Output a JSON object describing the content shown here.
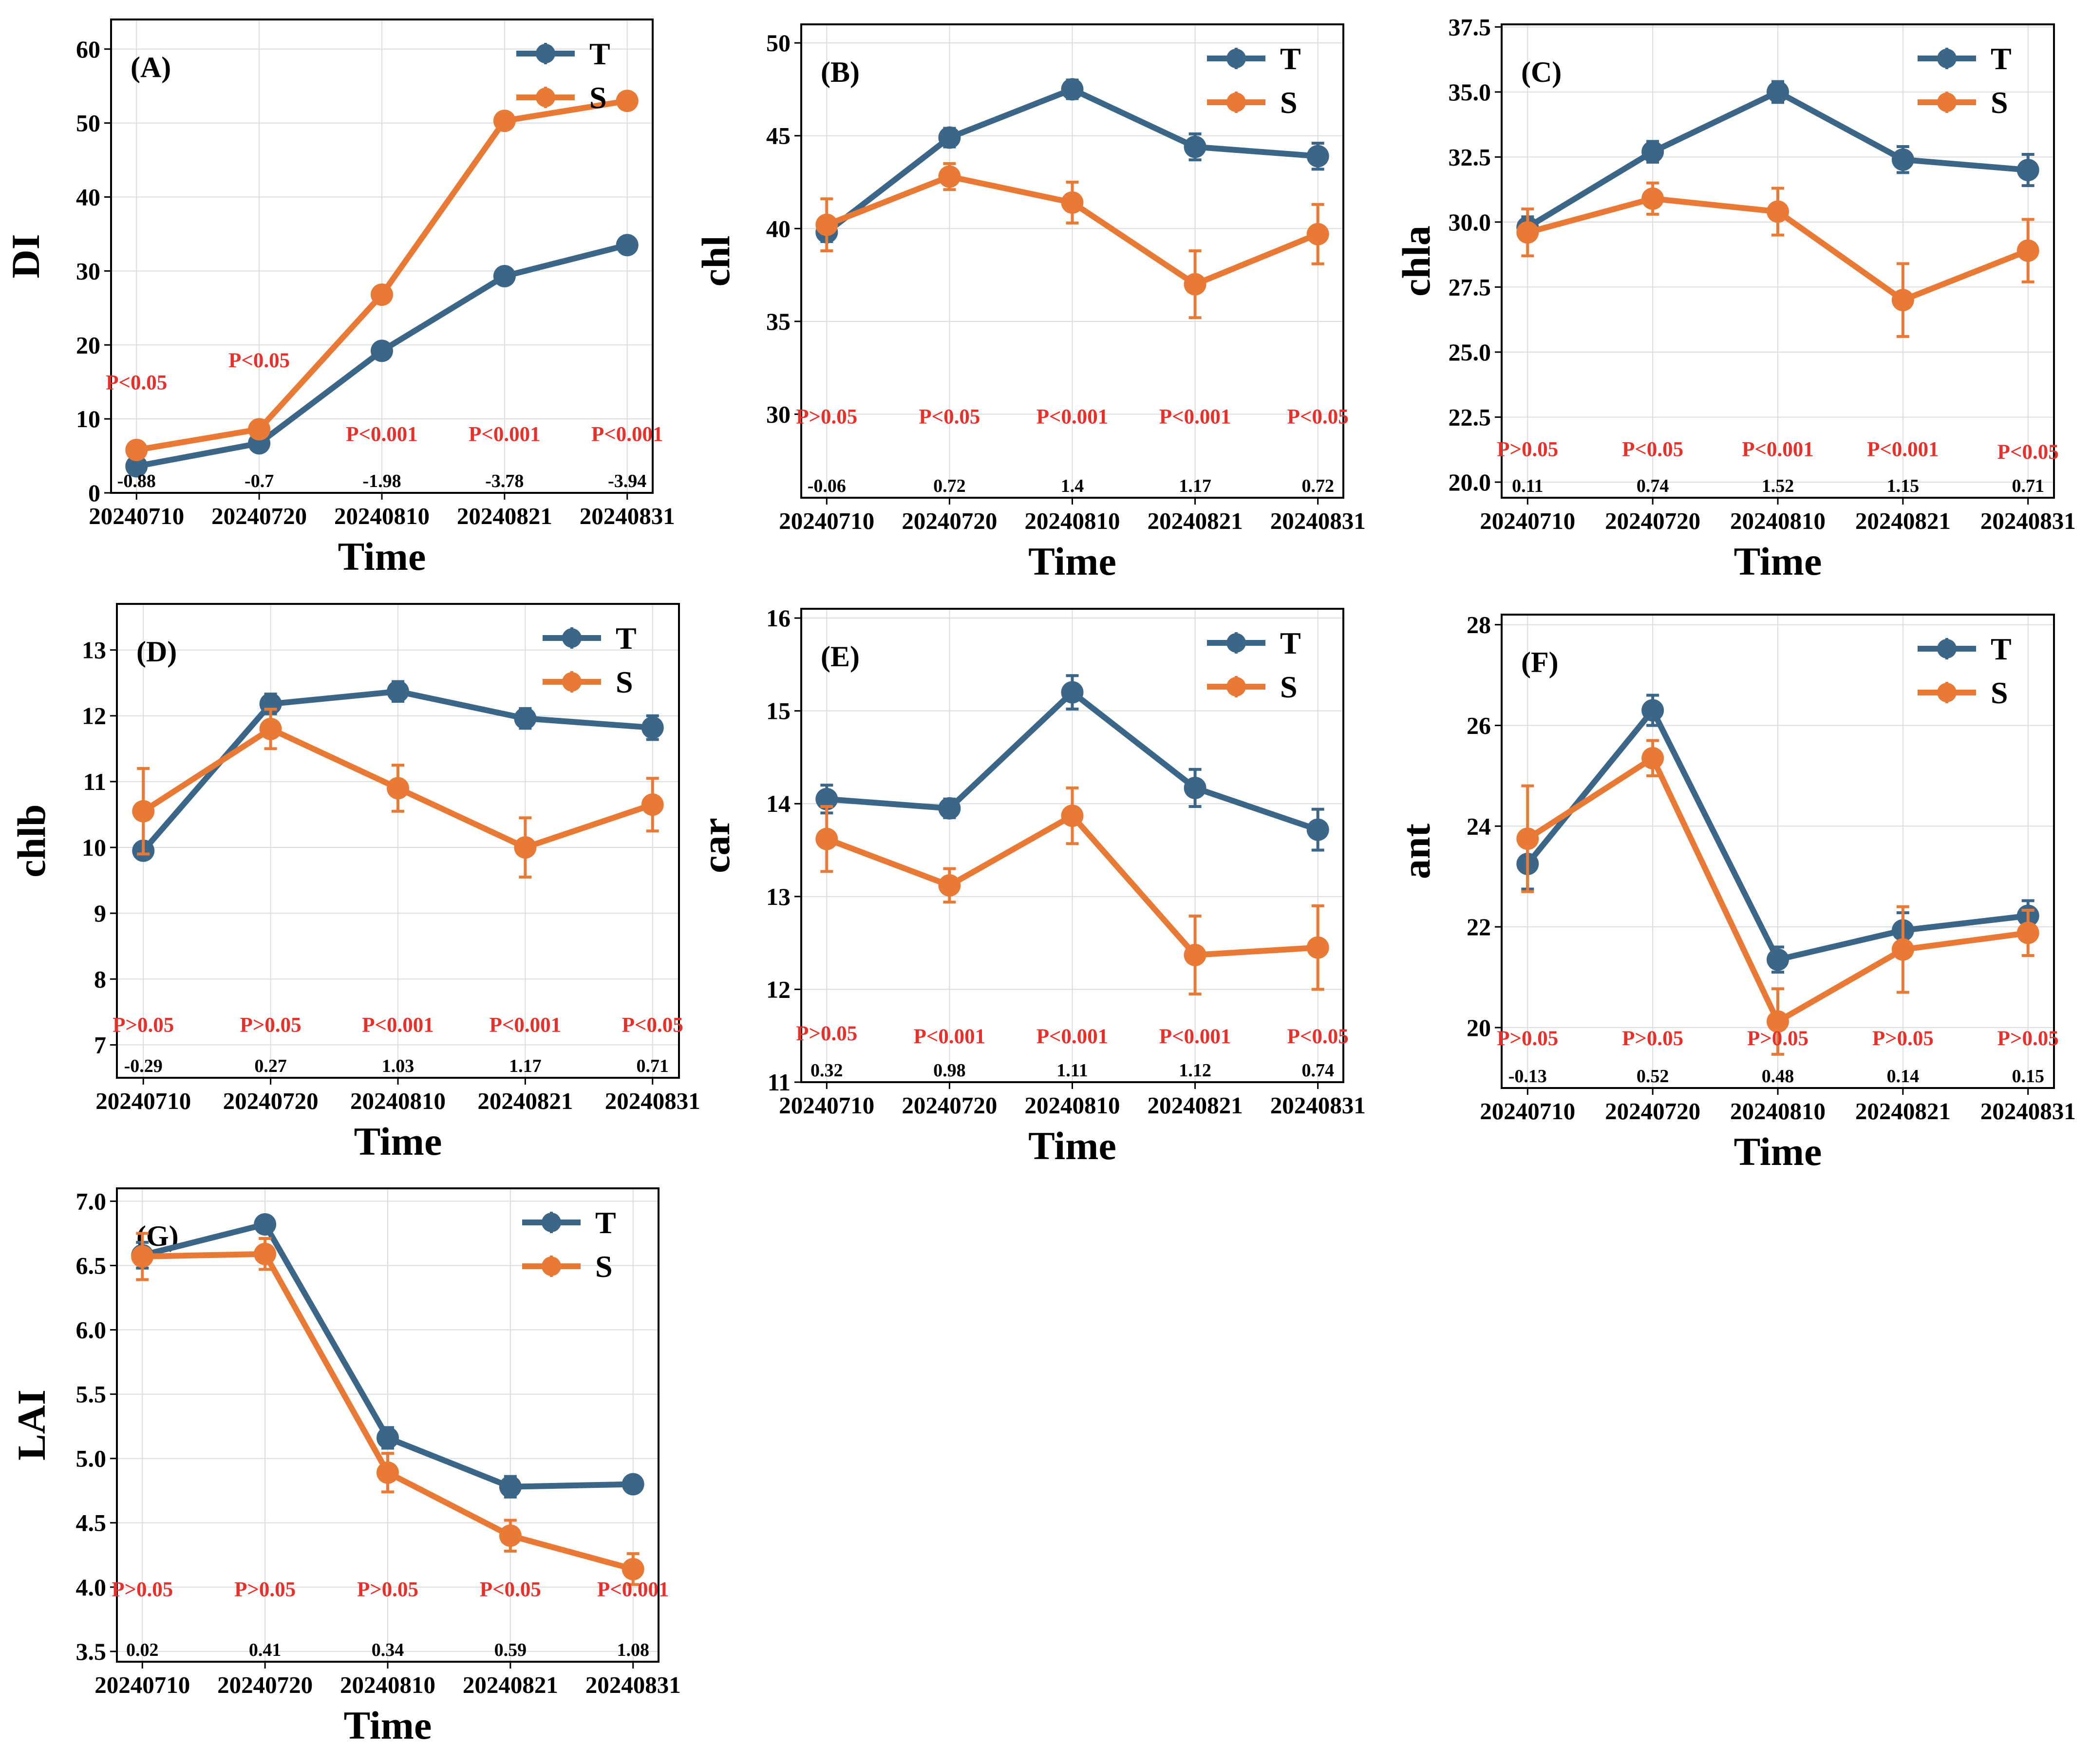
{
  "legend": {
    "t_label": "T",
    "s_label": "S"
  },
  "colors": {
    "T": "#3b6687",
    "S": "#e97a35",
    "sig": "#e8302a",
    "grid": "#dcdcdc",
    "axis": "#000000"
  },
  "chart_data": [
    {
      "id": "A",
      "type": "line",
      "panel_label": "(A)",
      "xlabel": "Time",
      "ylabel": "DI",
      "categories": [
        "20240710",
        "20240720",
        "20240810",
        "20240821",
        "20240831"
      ],
      "ylim": [
        0,
        64
      ],
      "yticks": [
        0,
        10,
        20,
        30,
        40,
        50,
        60
      ],
      "ytick_labels": [
        "0",
        "10",
        "20",
        "30",
        "40",
        "50",
        "60"
      ],
      "series": [
        {
          "name": "T",
          "values": [
            3.6,
            6.7,
            19.2,
            29.3,
            33.5
          ],
          "err": [
            0.4,
            0.4,
            0.5,
            0.5,
            0.5
          ]
        },
        {
          "name": "S",
          "values": [
            5.8,
            8.6,
            26.8,
            50.3,
            53.0
          ],
          "err": [
            0.4,
            0.4,
            0.5,
            0.5,
            0.5
          ]
        }
      ],
      "p_values": [
        "P<0.05",
        "P<0.05",
        "P<0.001",
        "P<0.001",
        "P<0.001"
      ],
      "p_levels": [
        14,
        17,
        7,
        7,
        7
      ],
      "effect_sizes": [
        "-0.88",
        "-0.7",
        "-1.98",
        "-3.78",
        "-3.94"
      ]
    },
    {
      "id": "B",
      "type": "line",
      "panel_label": "(B)",
      "xlabel": "Time",
      "ylabel": "chl",
      "categories": [
        "20240710",
        "20240720",
        "20240810",
        "20240821",
        "20240831"
      ],
      "ylim": [
        25.5,
        51
      ],
      "yticks": [
        30,
        35,
        40,
        45,
        50
      ],
      "ytick_labels": [
        "30",
        "35",
        "40",
        "45",
        "50"
      ],
      "series": [
        {
          "name": "T",
          "values": [
            39.8,
            44.9,
            47.5,
            44.4,
            43.9
          ],
          "err": [
            0.5,
            0.5,
            0.5,
            0.7,
            0.7
          ]
        },
        {
          "name": "S",
          "values": [
            40.2,
            42.8,
            41.4,
            37.0,
            39.7
          ],
          "err": [
            1.4,
            0.7,
            1.1,
            1.8,
            1.6
          ]
        }
      ],
      "p_values": [
        "P>0.05",
        "P<0.05",
        "P<0.001",
        "P<0.001",
        "P<0.05"
      ],
      "p_levels": [
        29.5,
        29.5,
        29.5,
        29.5,
        29.5
      ],
      "effect_sizes": [
        "-0.06",
        "0.72",
        "1.4",
        "1.17",
        "0.72"
      ]
    },
    {
      "id": "C",
      "type": "line",
      "panel_label": "(C)",
      "xlabel": "Time",
      "ylabel": "chla",
      "categories": [
        "20240710",
        "20240720",
        "20240810",
        "20240821",
        "20240831"
      ],
      "ylim": [
        19.4,
        37.6
      ],
      "yticks": [
        20.0,
        22.5,
        25.0,
        27.5,
        30.0,
        32.5,
        35.0,
        37.5
      ],
      "ytick_labels": [
        "20.0",
        "22.5",
        "25.0",
        "27.5",
        "30.0",
        "32.5",
        "35.0",
        "37.5"
      ],
      "series": [
        {
          "name": "T",
          "values": [
            29.8,
            32.7,
            35.0,
            32.4,
            32.0
          ],
          "err": [
            0.4,
            0.4,
            0.4,
            0.5,
            0.6
          ]
        },
        {
          "name": "S",
          "values": [
            29.6,
            30.9,
            30.4,
            27.0,
            28.9
          ],
          "err": [
            0.9,
            0.6,
            0.9,
            1.4,
            1.2
          ]
        }
      ],
      "p_values": [
        "P>0.05",
        "P<0.05",
        "P<0.001",
        "P<0.001",
        "P<0.05"
      ],
      "p_levels": [
        21.0,
        21.0,
        21.0,
        21.0,
        20.9
      ],
      "effect_sizes": [
        "0.11",
        "0.74",
        "1.52",
        "1.15",
        "0.71"
      ]
    },
    {
      "id": "D",
      "type": "line",
      "panel_label": "(D)",
      "xlabel": "Time",
      "ylabel": "chlb",
      "categories": [
        "20240710",
        "20240720",
        "20240810",
        "20240821",
        "20240831"
      ],
      "ylim": [
        6.5,
        13.7
      ],
      "yticks": [
        7,
        8,
        9,
        10,
        11,
        12,
        13
      ],
      "ytick_labels": [
        "7",
        "8",
        "9",
        "10",
        "11",
        "12",
        "13"
      ],
      "series": [
        {
          "name": "T",
          "values": [
            9.95,
            12.18,
            12.37,
            11.96,
            11.82
          ],
          "err": [
            0.1,
            0.15,
            0.15,
            0.15,
            0.18
          ]
        },
        {
          "name": "S",
          "values": [
            10.55,
            11.8,
            10.9,
            10.0,
            10.65
          ],
          "err": [
            0.65,
            0.3,
            0.35,
            0.45,
            0.4
          ]
        }
      ],
      "p_values": [
        "P>0.05",
        "P>0.05",
        "P<0.001",
        "P<0.001",
        "P<0.05"
      ],
      "p_levels": [
        7.2,
        7.2,
        7.2,
        7.2,
        7.2
      ],
      "effect_sizes": [
        "-0.29",
        "0.27",
        "1.03",
        "1.17",
        "0.71"
      ]
    },
    {
      "id": "E",
      "type": "line",
      "panel_label": "(E)",
      "xlabel": "Time",
      "ylabel": "car",
      "categories": [
        "20240710",
        "20240720",
        "20240810",
        "20240821",
        "20240831"
      ],
      "ylim": [
        11.0,
        16.1
      ],
      "yticks": [
        11,
        12,
        13,
        14,
        15,
        16
      ],
      "ytick_labels": [
        "11",
        "12",
        "13",
        "14",
        "15",
        "16"
      ],
      "series": [
        {
          "name": "T",
          "values": [
            14.05,
            13.95,
            15.2,
            14.17,
            13.72
          ],
          "err": [
            0.15,
            0.1,
            0.18,
            0.2,
            0.22
          ]
        },
        {
          "name": "S",
          "values": [
            13.62,
            13.12,
            13.87,
            12.37,
            12.45
          ],
          "err": [
            0.35,
            0.18,
            0.3,
            0.42,
            0.45
          ]
        }
      ],
      "p_values": [
        "P>0.05",
        "P<0.001",
        "P<0.001",
        "P<0.001",
        "P<0.05"
      ],
      "p_levels": [
        11.45,
        11.42,
        11.42,
        11.42,
        11.42
      ],
      "effect_sizes": [
        "0.32",
        "0.98",
        "1.11",
        "1.12",
        "0.74"
      ]
    },
    {
      "id": "F",
      "type": "line",
      "panel_label": "(F)",
      "xlabel": "Time",
      "ylabel": "ant",
      "categories": [
        "20240710",
        "20240720",
        "20240810",
        "20240821",
        "20240831"
      ],
      "ylim": [
        18.8,
        28.2
      ],
      "yticks": [
        20,
        22,
        24,
        26,
        28
      ],
      "ytick_labels": [
        "20",
        "22",
        "24",
        "26",
        "28"
      ],
      "series": [
        {
          "name": "T",
          "values": [
            23.25,
            26.3,
            21.35,
            21.93,
            22.22
          ],
          "err": [
            0.5,
            0.3,
            0.25,
            0.35,
            0.3
          ]
        },
        {
          "name": "S",
          "values": [
            23.75,
            25.35,
            20.12,
            21.55,
            21.88
          ],
          "err": [
            1.05,
            0.35,
            0.65,
            0.85,
            0.45
          ]
        }
      ],
      "p_values": [
        "P>0.05",
        "P>0.05",
        "P>0.05",
        "P>0.05",
        "P>0.05"
      ],
      "p_levels": [
        19.65,
        19.65,
        19.65,
        19.65,
        19.65
      ],
      "effect_sizes": [
        "-0.13",
        "0.52",
        "0.48",
        "0.14",
        "0.15"
      ]
    },
    {
      "id": "G",
      "type": "line",
      "panel_label": "(G)",
      "xlabel": "Time",
      "ylabel": "LAI",
      "categories": [
        "20240710",
        "20240720",
        "20240810",
        "20240821",
        "20240831"
      ],
      "ylim": [
        3.42,
        7.1
      ],
      "yticks": [
        3.5,
        4.0,
        4.5,
        5.0,
        5.5,
        6.0,
        6.5,
        7.0
      ],
      "ytick_labels": [
        "3.5",
        "4.0",
        "4.5",
        "5.0",
        "5.5",
        "6.0",
        "6.5",
        "7.0"
      ],
      "series": [
        {
          "name": "T",
          "values": [
            6.58,
            6.82,
            5.16,
            4.78,
            4.8
          ],
          "err": [
            0.1,
            0.05,
            0.08,
            0.08,
            0.06
          ]
        },
        {
          "name": "S",
          "values": [
            6.57,
            6.59,
            4.89,
            4.4,
            4.14
          ],
          "err": [
            0.18,
            0.12,
            0.15,
            0.12,
            0.12
          ]
        }
      ],
      "p_values": [
        "P>0.05",
        "P>0.05",
        "P>0.05",
        "P<0.05",
        "P<0.001"
      ],
      "p_levels": [
        3.93,
        3.93,
        3.93,
        3.93,
        3.93
      ],
      "effect_sizes": [
        "0.02",
        "0.41",
        "0.34",
        "0.59",
        "1.08"
      ]
    }
  ]
}
